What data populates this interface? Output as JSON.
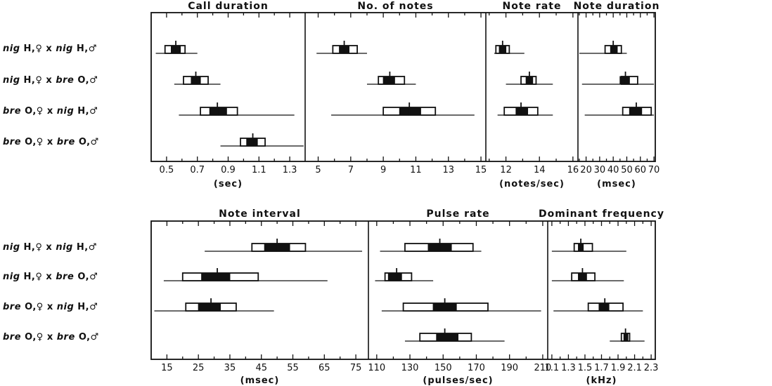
{
  "chart_data": [
    {
      "type": "box",
      "row": 1,
      "title": "Call duration",
      "xlabel": "(sec)",
      "xlim": [
        0.4,
        1.4
      ],
      "ticks": [
        "0.5",
        "0.7",
        "0.9",
        "1.1",
        "1.3"
      ],
      "tick_values": [
        0.5,
        0.7,
        0.9,
        1.1,
        1.3
      ],
      "boxes": [
        {
          "min": 0.43,
          "q1": 0.49,
          "mean": 0.56,
          "q3": 0.62,
          "max": 0.7,
          "sl": 0.53,
          "sr": 0.59
        },
        {
          "min": 0.55,
          "q1": 0.61,
          "mean": 0.69,
          "q3": 0.77,
          "max": 0.85,
          "sl": 0.66,
          "sr": 0.72
        },
        {
          "min": 0.58,
          "q1": 0.72,
          "mean": 0.83,
          "q3": 0.96,
          "max": 1.33,
          "sl": 0.78,
          "sr": 0.89
        },
        {
          "min": 0.85,
          "q1": 0.98,
          "mean": 1.06,
          "q3": 1.14,
          "max": 1.39,
          "sl": 1.02,
          "sr": 1.09
        }
      ]
    },
    {
      "type": "box",
      "row": 1,
      "title": "No. of notes",
      "xlabel": "",
      "xlim": [
        4.2,
        15.3
      ],
      "ticks": [
        "5",
        "7",
        "9",
        "11",
        "13",
        "15"
      ],
      "tick_values": [
        5,
        7,
        9,
        11,
        13,
        15
      ],
      "boxes": [
        {
          "min": 4.9,
          "q1": 5.9,
          "mean": 6.6,
          "q3": 7.4,
          "max": 8.0,
          "sl": 6.3,
          "sr": 6.9
        },
        {
          "min": 8.0,
          "q1": 8.7,
          "mean": 9.4,
          "q3": 10.3,
          "max": 11.0,
          "sl": 9.0,
          "sr": 9.7
        },
        {
          "min": 5.8,
          "q1": 9.0,
          "mean": 10.6,
          "q3": 12.2,
          "max": 14.6,
          "sl": 10.0,
          "sr": 11.3
        },
        {
          "min": null,
          "q1": null,
          "mean": null,
          "q3": null,
          "max": null,
          "sl": null,
          "sr": null
        }
      ]
    },
    {
      "type": "box",
      "row": 1,
      "title": "Note rate",
      "xlabel": "(notes/sec)",
      "xlim": [
        10.8,
        16.3
      ],
      "ticks": [
        "12",
        "14",
        "16"
      ],
      "tick_values": [
        12,
        14,
        16
      ],
      "boxes": [
        {
          "min": 11.3,
          "q1": 11.4,
          "mean": 11.8,
          "q3": 12.2,
          "max": 13.1,
          "sl": 11.6,
          "sr": 12.0
        },
        {
          "min": 12.0,
          "q1": 12.9,
          "mean": 13.4,
          "q3": 13.8,
          "max": 14.8,
          "sl": 13.2,
          "sr": 13.6
        },
        {
          "min": 11.5,
          "q1": 11.9,
          "mean": 12.9,
          "q3": 13.9,
          "max": 14.8,
          "sl": 12.6,
          "sr": 13.3
        },
        {
          "min": null,
          "q1": null,
          "mean": null,
          "q3": null,
          "max": null,
          "sl": null,
          "sr": null
        }
      ]
    },
    {
      "type": "box",
      "row": 1,
      "title": "Note duration",
      "xlabel": "(msec)",
      "xlim": [
        14,
        71
      ],
      "ticks": [
        "20",
        "30",
        "40",
        "50",
        "60",
        "70"
      ],
      "tick_values": [
        20,
        30,
        40,
        50,
        60,
        70
      ],
      "boxes": [
        {
          "min": 15,
          "q1": 34,
          "mean": 40,
          "q3": 46,
          "max": 50,
          "sl": 38,
          "sr": 43
        },
        {
          "min": 17,
          "q1": 46,
          "mean": 49,
          "q3": 58,
          "max": 70,
          "sl": 45,
          "sr": 52
        },
        {
          "min": 19,
          "q1": 47,
          "mean": 57,
          "q3": 68,
          "max": 70,
          "sl": 52,
          "sr": 61
        },
        {
          "min": null,
          "q1": null,
          "mean": null,
          "q3": null,
          "max": null,
          "sl": null,
          "sr": null
        }
      ]
    },
    {
      "type": "box",
      "row": 2,
      "title": "Note interval",
      "xlabel": "(msec)",
      "xlim": [
        10,
        79
      ],
      "ticks": [
        "15",
        "25",
        "35",
        "45",
        "55",
        "65",
        "75"
      ],
      "tick_values": [
        15,
        25,
        35,
        45,
        55,
        65,
        75
      ],
      "boxes": [
        {
          "min": 27,
          "q1": 42,
          "mean": 50,
          "q3": 59,
          "max": 77,
          "sl": 46,
          "sr": 54
        },
        {
          "min": 14,
          "q1": 20,
          "mean": 31,
          "q3": 44,
          "max": 66,
          "sl": 26,
          "sr": 35
        },
        {
          "min": 11,
          "q1": 21,
          "mean": 29,
          "q3": 37,
          "max": 49,
          "sl": 25,
          "sr": 32
        },
        {
          "min": null,
          "q1": null,
          "mean": null,
          "q3": null,
          "max": null,
          "sl": null,
          "sr": null
        }
      ]
    },
    {
      "type": "box",
      "row": 2,
      "title": "Pulse rate",
      "xlabel": "(pulses/sec)",
      "xlim": [
        105,
        213
      ],
      "ticks": [
        "110",
        "130",
        "150",
        "170",
        "190",
        "210"
      ],
      "tick_values": [
        110,
        130,
        150,
        170,
        190,
        210
      ],
      "boxes": [
        {
          "min": 112,
          "q1": 127,
          "mean": 148,
          "q3": 168,
          "max": 173,
          "sl": 141,
          "sr": 155
        },
        {
          "min": 109,
          "q1": 115,
          "mean": 122,
          "q3": 131,
          "max": 144,
          "sl": 117,
          "sr": 125
        },
        {
          "min": 113,
          "q1": 126,
          "mean": 151,
          "q3": 177,
          "max": 209,
          "sl": 144,
          "sr": 158
        },
        {
          "min": 127,
          "q1": 136,
          "mean": 151,
          "q3": 167,
          "max": 187,
          "sl": 146,
          "sr": 159
        }
      ]
    },
    {
      "type": "box",
      "row": 2,
      "title": "Dominant frequency",
      "xlabel": "(kHz)",
      "xlim": [
        1.05,
        2.35
      ],
      "ticks": [
        "1.1",
        "1.3",
        "1.5",
        "1.7",
        "1.9",
        "2.1",
        "2.3"
      ],
      "tick_values": [
        1.1,
        1.3,
        1.5,
        1.7,
        1.9,
        2.1,
        2.3
      ],
      "boxes": [
        {
          "min": 1.1,
          "q1": 1.37,
          "mean": 1.45,
          "q3": 1.59,
          "max": 2.0,
          "sl": 1.42,
          "sr": 1.48
        },
        {
          "min": 1.1,
          "q1": 1.34,
          "mean": 1.47,
          "q3": 1.62,
          "max": 1.97,
          "sl": 1.42,
          "sr": 1.52
        },
        {
          "min": 1.12,
          "q1": 1.54,
          "mean": 1.74,
          "q3": 1.96,
          "max": 2.2,
          "sl": 1.67,
          "sr": 1.79
        },
        {
          "min": 1.8,
          "q1": 1.94,
          "mean": 1.99,
          "q3": 2.04,
          "max": 2.22,
          "sl": 1.97,
          "sr": 2.02
        }
      ]
    }
  ],
  "row_labels": [
    {
      "a": "nig",
      "b": " H,♀ x ",
      "c": "nig",
      "d": " H,♂"
    },
    {
      "a": "nig",
      "b": " H,♀ x ",
      "c": "bre",
      "d": " O,♂"
    },
    {
      "a": "bre",
      "b": " O,♀ x ",
      "c": "nig",
      "d": " H,♂"
    },
    {
      "a": "bre",
      "b": " O,♀ x ",
      "c": "bre",
      "d": " O,♂"
    }
  ],
  "colors": {
    "ink": "#111111",
    "fill": "#ffffff",
    "mean": "#111111"
  }
}
